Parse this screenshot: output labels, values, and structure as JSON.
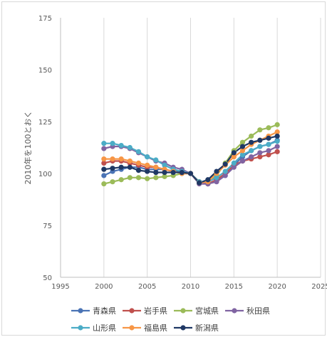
{
  "chart_data": {
    "type": "line",
    "title": "",
    "xlabel": "",
    "ylabel": "2010年を100とおく",
    "xlim": [
      1995,
      2025
    ],
    "ylim": [
      50,
      175
    ],
    "xticks": [
      1995,
      2000,
      2005,
      2010,
      2015,
      2020,
      2025
    ],
    "yticks": [
      50,
      75,
      100,
      125,
      150,
      175
    ],
    "x_tick_labels": [
      "1995",
      "2000",
      "2005",
      "2010",
      "2015",
      "2020",
      "2025"
    ],
    "y_tick_labels": [
      "50",
      "75",
      "100",
      "125",
      "150",
      "175"
    ],
    "grid": "vertical major gridlines",
    "legend_position": "bottom",
    "x": [
      2000,
      2001,
      2002,
      2003,
      2004,
      2005,
      2006,
      2007,
      2008,
      2009,
      2010,
      2011,
      2012,
      2013,
      2014,
      2015,
      2016,
      2017,
      2018,
      2019,
      2020
    ],
    "series": [
      {
        "name": "青森県",
        "color": "#4a73b5",
        "values": [
          99,
          101,
          102,
          103,
          103,
          102,
          102,
          102,
          101,
          101,
          100,
          96,
          95,
          97,
          99,
          104,
          108,
          111,
          113,
          114,
          116
        ]
      },
      {
        "name": "岩手県",
        "color": "#c0504d",
        "values": [
          105,
          106,
          106,
          105,
          104,
          103,
          103,
          102,
          101,
          100,
          100,
          96,
          95,
          97,
          100,
          104,
          106,
          107,
          108,
          109,
          110.5
        ]
      },
      {
        "name": "宮城県",
        "color": "#9bbb59",
        "values": [
          95,
          96,
          97,
          98,
          98,
          97.5,
          98,
          98.5,
          99,
          100,
          100,
          96,
          96,
          99,
          105,
          111,
          115,
          118,
          121,
          122,
          123.5
        ]
      },
      {
        "name": "秋田県",
        "color": "#8064a2",
        "values": [
          112,
          113,
          113,
          112,
          110,
          108,
          106,
          105,
          103,
          102,
          100,
          95,
          95,
          96,
          99,
          103,
          106,
          108,
          110,
          111,
          113
        ]
      },
      {
        "name": "山形県",
        "color": "#4bacc6",
        "values": [
          114.5,
          114.5,
          113.5,
          112.5,
          110.5,
          108,
          106.5,
          104,
          102,
          101,
          100,
          96,
          96,
          98,
          101,
          105,
          109,
          111,
          113,
          114,
          115.5
        ]
      },
      {
        "name": "福島県",
        "color": "#f79646",
        "values": [
          107,
          107,
          107,
          106,
          105,
          104,
          103,
          102,
          101,
          100,
          100,
          95.5,
          96,
          100,
          104,
          108,
          111,
          114,
          116,
          118,
          120
        ]
      },
      {
        "name": "新潟県",
        "color": "#1f3864",
        "values": [
          102,
          102.5,
          103,
          103,
          101.5,
          101,
          100.5,
          100.5,
          100.5,
          100.5,
          100,
          95.5,
          97,
          101,
          104.5,
          110,
          113,
          115,
          116,
          117,
          118
        ]
      }
    ]
  }
}
